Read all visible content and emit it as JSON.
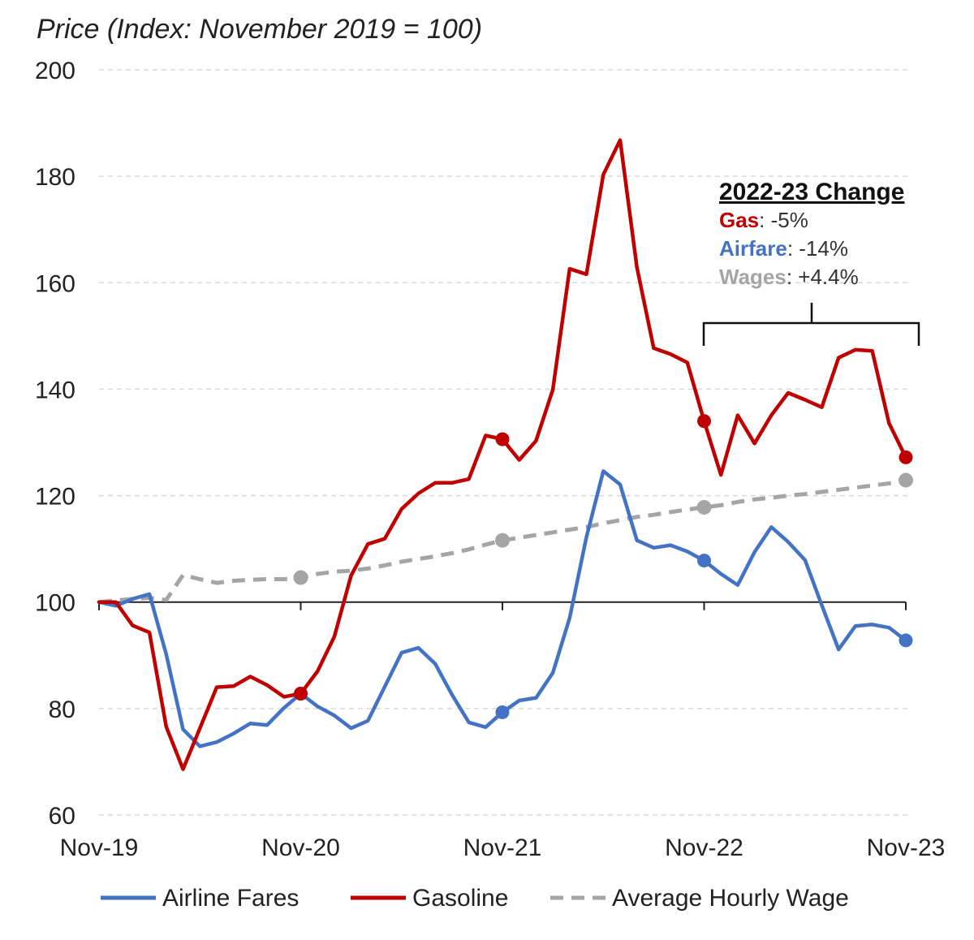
{
  "chart_data": {
    "type": "line",
    "title": "Price (Index: November 2019 = 100)",
    "ylim": [
      60,
      200
    ],
    "yticks": [
      60,
      80,
      100,
      120,
      140,
      160,
      180,
      200
    ],
    "grid": true,
    "baseline": 100,
    "x_start": "2019-11",
    "x_end": "2023-11",
    "xticks": [
      {
        "label": "Nov-19",
        "x": "2019-11"
      },
      {
        "label": "Nov-20",
        "x": "2020-11"
      },
      {
        "label": "Nov-21",
        "x": "2021-11"
      },
      {
        "label": "Nov-22",
        "x": "2022-11"
      },
      {
        "label": "Nov-23",
        "x": "2023-11"
      }
    ],
    "legend_position": "bottom",
    "series": [
      {
        "name": "Airline Fares",
        "color": "#4472c4",
        "dashed": false,
        "marker_months": [
          "2020-11",
          "2021-11",
          "2022-11",
          "2023-11"
        ],
        "x": [
          "2019-11",
          "2019-12",
          "2020-01",
          "2020-02",
          "2020-03",
          "2020-04",
          "2020-05",
          "2020-06",
          "2020-07",
          "2020-08",
          "2020-09",
          "2020-10",
          "2020-11",
          "2020-12",
          "2021-01",
          "2021-02",
          "2021-03",
          "2021-04",
          "2021-05",
          "2021-06",
          "2021-07",
          "2021-08",
          "2021-09",
          "2021-10",
          "2021-11",
          "2021-12",
          "2022-01",
          "2022-02",
          "2022-03",
          "2022-04",
          "2022-05",
          "2022-06",
          "2022-07",
          "2022-08",
          "2022-09",
          "2022-10",
          "2022-11",
          "2022-12",
          "2023-01",
          "2023-02",
          "2023-03",
          "2023-04",
          "2023-05",
          "2023-06",
          "2023-07",
          "2023-08",
          "2023-09",
          "2023-10",
          "2023-11"
        ],
        "values": [
          100,
          99.3,
          100.6,
          101.5,
          90.2,
          76.1,
          72.9,
          73.7,
          75.3,
          77.2,
          76.9,
          80.1,
          82.8,
          80.4,
          78.7,
          76.3,
          77.7,
          84.1,
          90.5,
          91.4,
          88.4,
          82.6,
          77.4,
          76.5,
          79.3,
          81.5,
          82.0,
          86.7,
          97.0,
          112.2,
          124.6,
          122.1,
          111.6,
          110.2,
          110.7,
          109.5,
          107.8,
          105.3,
          103.2,
          109.4,
          114.1,
          111.3,
          107.9,
          99.4,
          91.1,
          95.5,
          95.8,
          95.2,
          92.8
        ]
      },
      {
        "name": "Gasoline",
        "color": "#c00000",
        "dashed": false,
        "marker_months": [
          "2020-11",
          "2021-11",
          "2022-11",
          "2023-11"
        ],
        "x": [
          "2019-11",
          "2019-12",
          "2020-01",
          "2020-02",
          "2020-03",
          "2020-04",
          "2020-05",
          "2020-06",
          "2020-07",
          "2020-08",
          "2020-09",
          "2020-10",
          "2020-11",
          "2020-12",
          "2021-01",
          "2021-02",
          "2021-03",
          "2021-04",
          "2021-05",
          "2021-06",
          "2021-07",
          "2021-08",
          "2021-09",
          "2021-10",
          "2021-11",
          "2021-12",
          "2022-01",
          "2022-02",
          "2022-03",
          "2022-04",
          "2022-05",
          "2022-06",
          "2022-07",
          "2022-08",
          "2022-09",
          "2022-10",
          "2022-11",
          "2022-12",
          "2023-01",
          "2023-02",
          "2023-03",
          "2023-04",
          "2023-05",
          "2023-06",
          "2023-07",
          "2023-08",
          "2023-09",
          "2023-10",
          "2023-11"
        ],
        "values": [
          100,
          100.0,
          95.6,
          94.3,
          76.6,
          68.6,
          76.3,
          84.0,
          84.2,
          86.0,
          84.4,
          82.2,
          82.8,
          87.0,
          93.5,
          105.0,
          110.9,
          111.9,
          117.5,
          120.4,
          122.4,
          122.4,
          123.1,
          131.3,
          130.6,
          126.7,
          130.3,
          139.9,
          162.6,
          161.6,
          180.3,
          186.8,
          162.9,
          147.7,
          146.6,
          145.0,
          134.0,
          123.9,
          135.1,
          129.8,
          135.1,
          139.3,
          138.0,
          136.6,
          145.9,
          147.4,
          147.2,
          133.6,
          127.2
        ]
      },
      {
        "name": "Average Hourly Wage",
        "color": "#a5a5a5",
        "dashed": true,
        "marker_months": [
          "2020-11",
          "2021-11",
          "2022-11",
          "2023-11"
        ],
        "x": [
          "2019-11",
          "2020-01",
          "2020-02",
          "2020-03",
          "2020-04",
          "2020-05",
          "2020-06",
          "2020-07",
          "2020-08",
          "2020-09",
          "2020-10",
          "2020-11",
          "2020-12",
          "2021-01",
          "2021-02",
          "2021-03",
          "2021-04",
          "2021-05",
          "2021-06",
          "2021-07",
          "2021-08",
          "2021-09",
          "2021-10",
          "2021-11",
          "2021-12",
          "2022-01",
          "2022-02",
          "2022-03",
          "2022-04",
          "2022-05",
          "2022-06",
          "2022-07",
          "2022-08",
          "2022-09",
          "2022-10",
          "2022-11",
          "2022-12",
          "2023-01",
          "2023-02",
          "2023-03",
          "2023-04",
          "2023-05",
          "2023-06",
          "2023-07",
          "2023-08",
          "2023-09",
          "2023-10",
          "2023-11"
        ],
        "values": [
          100,
          100.6,
          100.8,
          100.4,
          105.1,
          104.3,
          103.6,
          104.0,
          104.2,
          104.3,
          104.3,
          104.6,
          105.3,
          105.7,
          105.9,
          106.3,
          106.9,
          107.6,
          108.1,
          108.6,
          109.2,
          109.9,
          110.8,
          111.6,
          112.1,
          112.6,
          113.1,
          113.6,
          114.1,
          114.8,
          115.4,
          116.0,
          116.4,
          116.9,
          117.4,
          117.8,
          118.2,
          118.8,
          119.3,
          119.6,
          120.0,
          120.3,
          120.7,
          121.1,
          121.5,
          121.9,
          122.3,
          122.9
        ]
      }
    ],
    "annotation": {
      "heading": "2022-23 Change",
      "lines": [
        {
          "label": "Gas",
          "value": ": -5%",
          "color": "#c00000"
        },
        {
          "label": "Airfare",
          "value": ": -14%",
          "color": "#4472c4"
        },
        {
          "label": "Wages",
          "value": ": +4.4%",
          "color": "#a5a5a5"
        }
      ]
    }
  }
}
